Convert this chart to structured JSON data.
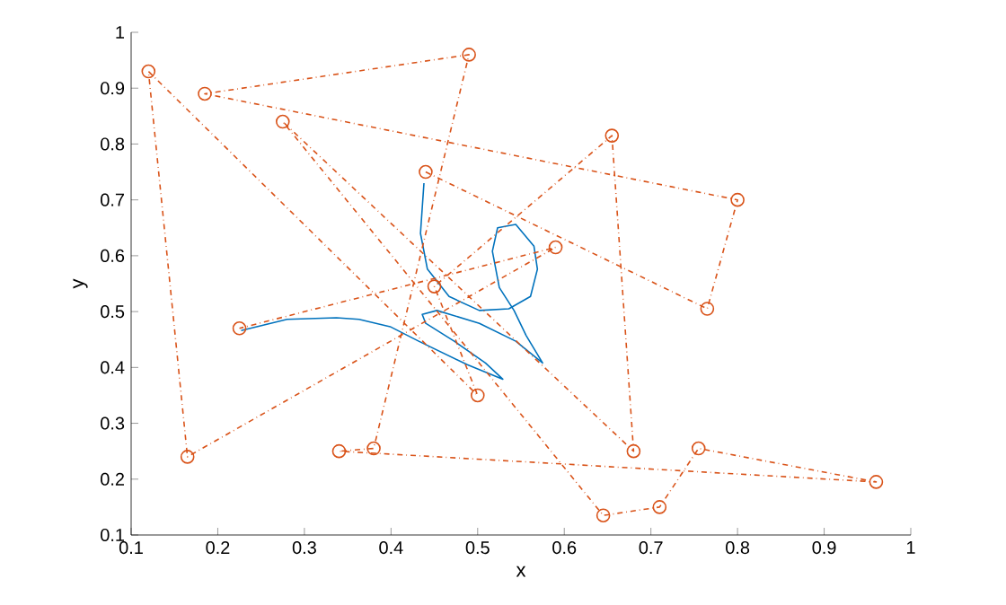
{
  "chart_data": {
    "type": "line",
    "xlabel": "x",
    "ylabel": "y",
    "xlim": [
      0.1,
      1
    ],
    "ylim": [
      0.1,
      1
    ],
    "xticks": [
      0.1,
      0.2,
      0.3,
      0.4,
      0.5,
      0.6,
      0.7,
      0.8,
      0.9,
      1
    ],
    "yticks": [
      0.1,
      0.2,
      0.3,
      0.4,
      0.5,
      0.6,
      0.7,
      0.8,
      0.9,
      1
    ],
    "grid": false,
    "series": [
      {
        "color": "#0072bd",
        "marker": "none",
        "line_style": "solid",
        "x": [
          0.438,
          0.434,
          0.442,
          0.467,
          0.502,
          0.536,
          0.561,
          0.569,
          0.565,
          0.544,
          0.523,
          0.517,
          0.525,
          0.542,
          0.556,
          0.575,
          0.544,
          0.502,
          0.453,
          0.436,
          0.44,
          0.473,
          0.509,
          0.529,
          0.488,
          0.432,
          0.399,
          0.363,
          0.337,
          0.28,
          0.245,
          0.227
        ],
        "values": [
          0.73,
          0.64,
          0.576,
          0.527,
          0.502,
          0.505,
          0.527,
          0.576,
          0.617,
          0.656,
          0.65,
          0.608,
          0.543,
          0.502,
          0.457,
          0.408,
          0.447,
          0.479,
          0.502,
          0.495,
          0.479,
          0.447,
          0.408,
          0.379,
          0.405,
          0.447,
          0.473,
          0.486,
          0.489,
          0.486,
          0.473,
          0.466
        ]
      },
      {
        "color": "#d95319",
        "marker": "circle",
        "line_style": "dotted",
        "x": [
          0.44,
          0.765,
          0.8,
          0.185,
          0.49,
          0.38,
          0.34,
          0.96,
          0.755,
          0.71,
          0.645,
          0.275,
          0.68,
          0.655,
          0.45,
          0.5,
          0.12,
          0.165,
          0.59,
          0.225
        ],
        "values": [
          0.75,
          0.505,
          0.7,
          0.89,
          0.96,
          0.255,
          0.25,
          0.195,
          0.255,
          0.15,
          0.135,
          0.84,
          0.25,
          0.815,
          0.545,
          0.35,
          0.93,
          0.24,
          0.615,
          0.47
        ]
      }
    ]
  }
}
